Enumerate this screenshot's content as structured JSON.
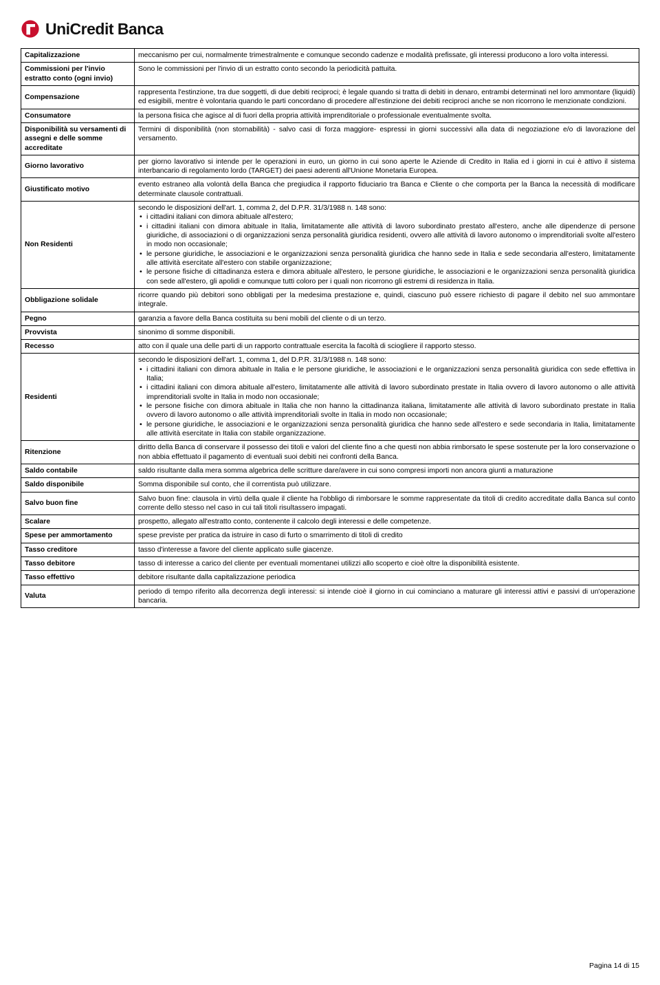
{
  "brand": {
    "name": "UniCredit Banca",
    "logo_color_red": "#c8102e",
    "logo_color_dark": "#1a1a1a"
  },
  "footer": {
    "text": "Pagina 14 di 15"
  },
  "rows": [
    {
      "term": "Capitalizzazione",
      "def": "meccanismo per cui, normalmente trimestralmente e comunque secondo cadenze e modalità prefissate, gli interessi producono a loro volta interessi."
    },
    {
      "term": "Commissioni per l'invio estratto conto (ogni invio)",
      "def": "Sono le commissioni per l'invio di un estratto conto secondo la periodicità pattuita."
    },
    {
      "term": "Compensazione",
      "def": "rappresenta l'estinzione, tra due soggetti, di due debiti reciproci; è legale quando si tratta di debiti in denaro, entrambi determinati nel loro ammontare (liquidi) ed esigibili, mentre è volontaria quando le parti concordano di procedere all'estinzione dei debiti reciproci anche se non ricorrono le menzionate condizioni."
    },
    {
      "term": "Consumatore",
      "def": "la persona fisica che agisce al di fuori della propria attività imprenditoriale o professionale eventualmente svolta."
    },
    {
      "term": "Disponibilità su versamenti di assegni e delle somme accreditate",
      "def": "Termini di disponibilità (non stornabilità) - salvo casi di forza maggiore- espressi in giorni successivi alla data di negoziazione e/o di lavorazione del versamento."
    },
    {
      "term": "Giorno lavorativo",
      "def": "per giorno lavorativo si intende per le operazioni in euro, un giorno in cui sono aperte le Aziende di Credito in Italia ed i giorni in cui è attivo il sistema interbancario di regolamento lordo (TARGET) dei paesi aderenti all'Unione Monetaria Europea."
    },
    {
      "term": "Giustificato motivo",
      "def": "evento estraneo alla volontà della Banca che pregiudica il rapporto fiduciario tra Banca e Cliente o che comporta per la Banca la necessità di modificare determinate clausole contrattuali."
    },
    {
      "term": "Non Residenti",
      "def_intro": "secondo le disposizioni dell'art. 1, comma 2, del D.P.R. 31/3/1988 n. 148 sono:",
      "bullets": [
        "i cittadini italiani con dimora abituale all'estero;",
        "i cittadini italiani con dimora abituale in Italia, limitatamente alle attività di lavoro subordinato prestato all'estero, anche alle dipendenze di persone giuridiche, di associazioni o di organizzazioni senza personalità giuridica residenti, ovvero alle attività di lavoro autonomo o imprenditoriali svolte all'estero in modo non occasionale;",
        "le persone giuridiche, le associazioni e le organizzazioni senza personalità giuridica che hanno sede in Italia e sede secondaria all'estero, limitatamente alle attività esercitate all'estero con stabile organizzazione;",
        "le persone fisiche di cittadinanza estera e dimora abituale all'estero, le persone giuridiche, le associazioni e le organizzazioni senza personalità giuridica con sede all'estero, gli apolidi e comunque tutti coloro per i quali non ricorrono gli estremi di residenza in Italia."
      ]
    },
    {
      "term": "Obbligazione solidale",
      "def": "ricorre quando più debitori sono obbligati per la medesima prestazione e, quindi, ciascuno può essere richiesto di pagare il debito nel suo ammontare integrale."
    },
    {
      "term": "Pegno",
      "def": "garanzia a favore della Banca costituita su beni mobili del cliente o di un terzo."
    },
    {
      "term": "Provvista",
      "def": "sinonimo di somme disponibili."
    },
    {
      "term": "Recesso",
      "def": "atto con il quale una delle parti di un rapporto contrattuale esercita la facoltà di sciogliere il rapporto stesso."
    },
    {
      "term": "Residenti",
      "def_intro": "secondo le disposizioni dell'art. 1, comma 1, del D.P.R. 31/3/1988 n. 148 sono:",
      "bullets": [
        "i cittadini italiani con dimora abituale in Italia e le persone giuridiche, le associazioni e le organizzazioni senza personalità giuridica con sede effettiva in Italia;",
        "i cittadini italiani con dimora abituale all'estero, limitatamente alle attività di lavoro subordinato prestate in Italia ovvero di lavoro autonomo o alle attività imprenditoriali svolte in Italia in modo non occasionale;",
        "le persone fisiche con dimora abituale in Italia che non hanno la cittadinanza italiana, limitatamente alle attività di lavoro subordinato prestate in Italia ovvero di lavoro autonomo o alle attività imprenditoriali svolte in Italia in modo non occasionale;",
        "le persone giuridiche, le associazioni e le organizzazioni senza personalità giuridica che hanno sede all'estero e sede secondaria in Italia, limitatamente alle attività esercitate in Italia con stabile organizzazione."
      ]
    },
    {
      "term": "Ritenzione",
      "def": "diritto della Banca di conservare il possesso dei titoli e valori del cliente fino a che questi non abbia rimborsato le spese sostenute per la loro conservazione o non abbia effettuato il pagamento di eventuali suoi debiti nei confronti della Banca."
    },
    {
      "term": "Saldo contabile",
      "def": "saldo risultante dalla mera somma algebrica delle scritture dare/avere in cui sono compresi importi non ancora giunti a maturazione"
    },
    {
      "term": "Saldo disponibile",
      "def": "Somma disponibile sul conto, che il correntista può utilizzare."
    },
    {
      "term": "Salvo buon fine",
      "def": "Salvo buon fine: clausola in virtù della quale il cliente ha l'obbligo di rimborsare le somme rappresentate da titoli di credito accreditate dalla Banca sul conto corrente dello stesso nel caso in cui tali titoli risultassero impagati."
    },
    {
      "term": "Scalare",
      "def": "prospetto, allegato all'estratto conto, contenente il calcolo degli interessi e delle competenze."
    },
    {
      "term": "Spese per ammortamento",
      "def": "spese previste per pratica da istruire in caso di furto o smarrimento di titoli di credito"
    },
    {
      "term": "Tasso creditore",
      "def": "tasso d'interesse a favore del cliente applicato sulle giacenze."
    },
    {
      "term": "Tasso debitore",
      "def": "tasso di interesse a carico del cliente per eventuali momentanei utilizzi allo scoperto e cioè oltre la disponibilità esistente."
    },
    {
      "term": "Tasso effettivo",
      "def": "debitore risultante dalla capitalizzazione periodica"
    },
    {
      "term": "Valuta",
      "def": "periodo di tempo riferito alla decorrenza degli interessi: si intende cioè il giorno in cui cominciano a maturare gli interessi attivi e passivi di un'operazione bancaria."
    }
  ]
}
